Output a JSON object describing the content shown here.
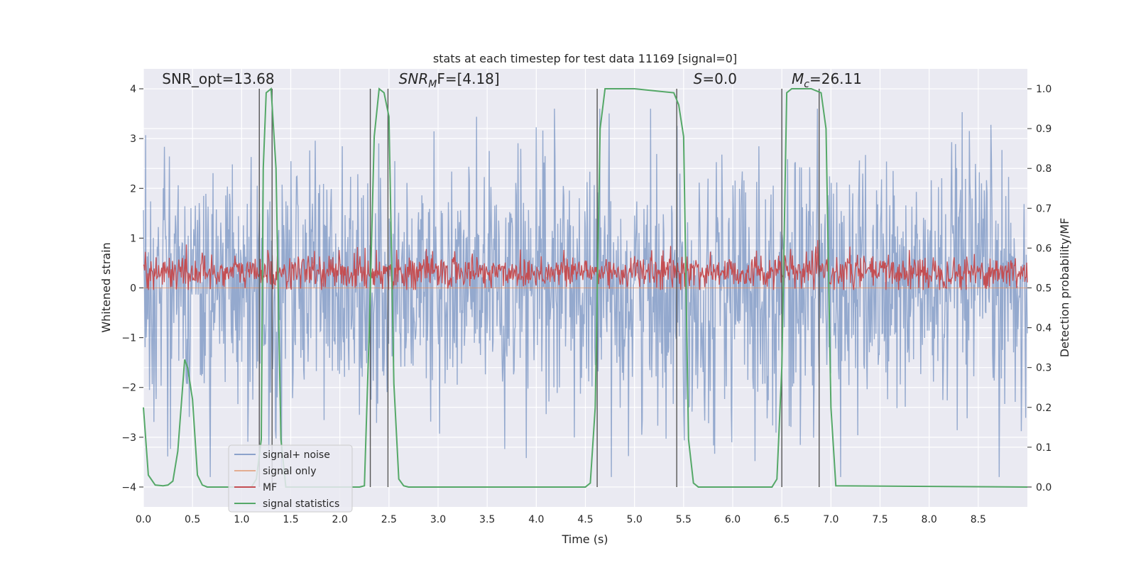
{
  "chart_data": {
    "type": "line",
    "title": "stats at each timestep for test data 11169 [signal=0]",
    "xlabel": "Time (s)",
    "ylabel_left": "Whitened strain",
    "ylabel_right": "Detection probability/MF",
    "xlim": [
      0,
      9
    ],
    "ylim_left": [
      -4.4,
      4.4
    ],
    "ylim_right": [
      -0.05,
      1.05
    ],
    "x_ticks": [
      "0.0",
      "0.5",
      "1.0",
      "1.5",
      "2.0",
      "2.5",
      "3.0",
      "3.5",
      "4.0",
      "4.5",
      "5.0",
      "5.5",
      "6.0",
      "6.5",
      "7.0",
      "7.5",
      "8.0",
      "8.5"
    ],
    "y_ticks_left": [
      "−4",
      "−3",
      "−2",
      "−1",
      "0",
      "1",
      "2",
      "3",
      "4"
    ],
    "y_ticks_right": [
      "0.0",
      "0.1",
      "0.2",
      "0.3",
      "0.4",
      "0.5",
      "0.6",
      "0.7",
      "0.8",
      "0.9",
      "1.0"
    ],
    "grid": true,
    "legend_position": "lower-left",
    "annotations": [
      {
        "text": "SNR_opt=13.68",
        "x": 0.19,
        "y": 4.1
      },
      {
        "text": "SNR",
        "sub": "M",
        "tail": "F=[4.18]",
        "x": 2.6,
        "y": 4.1
      },
      {
        "text": "S",
        "tail": "=0.0",
        "x": 5.6,
        "y": 4.1
      },
      {
        "text": "M",
        "sub": "c",
        "tail": "=26.11",
        "x": 6.6,
        "y": 4.1
      }
    ],
    "detection_markers_x": [
      1.18,
      1.31,
      2.31,
      2.49,
      4.62,
      5.43,
      6.5,
      6.88
    ],
    "series": [
      {
        "name": "signal+ noise",
        "color": "#4c72b0",
        "axis": "left",
        "description": "whitened strain noise, amplitude roughly -3.7 to 3.6 around 0",
        "amplitude": 1.3,
        "peak_max": 3.6,
        "peak_min": -3.8
      },
      {
        "name": "signal only",
        "color": "#dd8452",
        "axis": "left",
        "values_constant": 0.0
      },
      {
        "name": "MF",
        "color": "#c44e52",
        "axis": "right",
        "baseline": 0.54,
        "range": [
          0.495,
          0.62
        ]
      },
      {
        "name": "signal statistics",
        "color": "#55a868",
        "axis": "right",
        "x": [
          0.0,
          0.05,
          0.12,
          0.2,
          0.25,
          0.3,
          0.35,
          0.42,
          0.45,
          0.5,
          0.55,
          0.6,
          0.65,
          0.7,
          1.1,
          1.15,
          1.2,
          1.22,
          1.25,
          1.3,
          1.35,
          1.4,
          1.45,
          1.5,
          2.2,
          2.25,
          2.3,
          2.35,
          2.4,
          2.45,
          2.5,
          2.55,
          2.6,
          2.65,
          2.7,
          4.5,
          4.55,
          4.6,
          4.65,
          4.7,
          5.0,
          5.4,
          5.45,
          5.5,
          5.55,
          5.6,
          5.65,
          5.7,
          6.4,
          6.45,
          6.5,
          6.55,
          6.6,
          6.8,
          6.9,
          6.95,
          7.0,
          7.05,
          9.0
        ],
        "y": [
          0.2,
          0.03,
          0.005,
          0.003,
          0.005,
          0.015,
          0.09,
          0.32,
          0.3,
          0.22,
          0.03,
          0.005,
          0.0,
          0.0,
          0.0,
          0.02,
          0.12,
          0.8,
          0.99,
          1.0,
          0.8,
          0.12,
          0.0,
          0.0,
          0.0,
          0.003,
          0.4,
          0.88,
          1.0,
          0.99,
          0.93,
          0.26,
          0.02,
          0.003,
          0.0,
          0.0,
          0.01,
          0.2,
          0.9,
          1.0,
          1.0,
          0.99,
          0.96,
          0.88,
          0.12,
          0.01,
          0.0,
          0.0,
          0.0,
          0.02,
          0.3,
          0.99,
          1.0,
          1.0,
          0.99,
          0.9,
          0.2,
          0.003,
          0.0
        ]
      }
    ]
  }
}
